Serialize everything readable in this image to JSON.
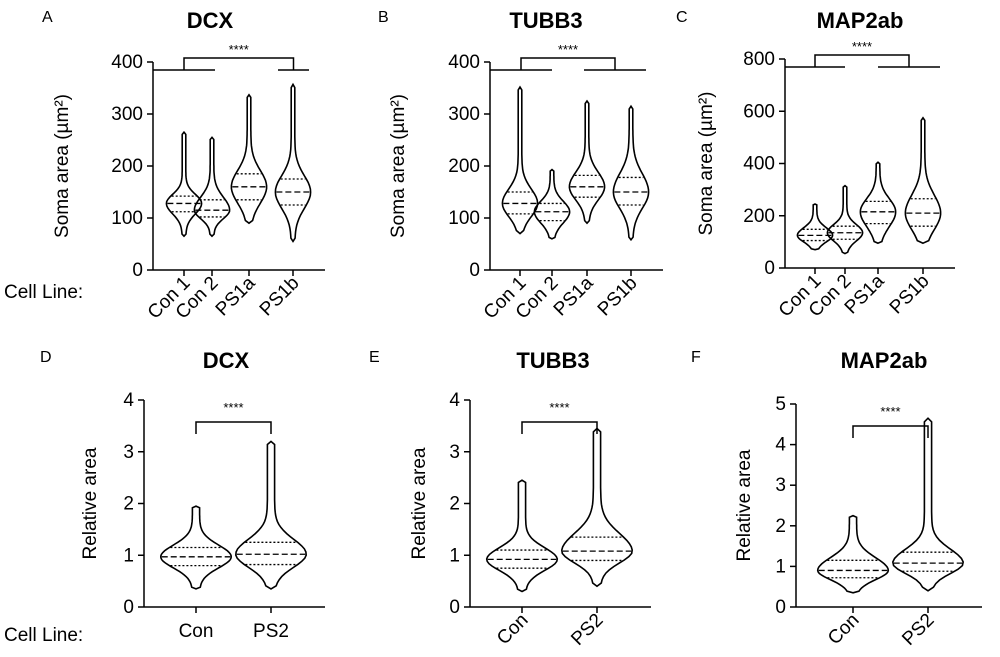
{
  "cell_line_label": "Cell Line:",
  "chart_data": [
    {
      "type": "violin",
      "letter": "A",
      "title": "DCX",
      "ylabel": "Soma area (µm²)",
      "ylim": [
        0,
        400
      ],
      "yticks": [
        0,
        100,
        200,
        300,
        400
      ],
      "categories": [
        "Con 1",
        "Con 2",
        "PS1a",
        "PS1b"
      ],
      "category_rotation": "rotated",
      "series": [
        {
          "name": "Con 1",
          "min": 65,
          "q1": 112,
          "median": 128,
          "q3": 142,
          "max": 265
        },
        {
          "name": "Con 2",
          "min": 65,
          "q1": 102,
          "median": 115,
          "q3": 135,
          "max": 255
        },
        {
          "name": "PS1a",
          "min": 90,
          "q1": 135,
          "median": 160,
          "q3": 185,
          "max": 337
        },
        {
          "name": "PS1b",
          "min": 55,
          "q1": 125,
          "median": 150,
          "q3": 175,
          "max": 357
        }
      ],
      "significance": "****",
      "comparison": "Con 1 + Con 2 vs PS1a + PS1b"
    },
    {
      "type": "violin",
      "letter": "B",
      "title": "TUBB3",
      "ylabel": "Soma area (µm²)",
      "ylim": [
        0,
        400
      ],
      "yticks": [
        0,
        100,
        200,
        300,
        400
      ],
      "categories": [
        "Con 1",
        "Con 2",
        "PS1a",
        "PS1b"
      ],
      "category_rotation": "rotated",
      "series": [
        {
          "name": "Con 1",
          "min": 70,
          "q1": 108,
          "median": 128,
          "q3": 150,
          "max": 352
        },
        {
          "name": "Con 2",
          "min": 60,
          "q1": 95,
          "median": 112,
          "q3": 128,
          "max": 193
        },
        {
          "name": "PS1a",
          "min": 90,
          "q1": 140,
          "median": 160,
          "q3": 182,
          "max": 325
        },
        {
          "name": "PS1b",
          "min": 58,
          "q1": 125,
          "median": 150,
          "q3": 178,
          "max": 315
        }
      ],
      "significance": "****",
      "comparison": "Con 1 + Con 2 vs PS1a + PS1b"
    },
    {
      "type": "violin",
      "letter": "C",
      "title": "MAP2ab",
      "ylabel": "Soma area (µm²)",
      "ylim": [
        0,
        800
      ],
      "yticks": [
        0,
        200,
        400,
        600,
        800
      ],
      "categories": [
        "Con 1",
        "Con 2",
        "PS1a",
        "PS1b"
      ],
      "category_rotation": "rotated",
      "series": [
        {
          "name": "Con 1",
          "min": 70,
          "q1": 105,
          "median": 125,
          "q3": 148,
          "max": 245
        },
        {
          "name": "Con 2",
          "min": 55,
          "q1": 110,
          "median": 135,
          "q3": 160,
          "max": 315
        },
        {
          "name": "PS1a",
          "min": 95,
          "q1": 170,
          "median": 215,
          "q3": 255,
          "max": 405
        },
        {
          "name": "PS1b",
          "min": 95,
          "q1": 160,
          "median": 210,
          "q3": 265,
          "max": 575
        }
      ],
      "significance": "****",
      "comparison": "Con 1 + Con 2 vs PS1a + PS1b"
    },
    {
      "type": "violin",
      "letter": "D",
      "title": "DCX",
      "ylabel": "Relative area",
      "ylim": [
        0,
        4
      ],
      "yticks": [
        0,
        1,
        2,
        3,
        4
      ],
      "categories": [
        "Con",
        "PS2"
      ],
      "category_rotation": "horizontal",
      "series": [
        {
          "name": "Con",
          "min": 0.35,
          "q1": 0.8,
          "median": 0.97,
          "q3": 1.15,
          "max": 1.95
        },
        {
          "name": "PS2",
          "min": 0.35,
          "q1": 0.82,
          "median": 1.02,
          "q3": 1.25,
          "max": 3.2
        }
      ],
      "significance": "****",
      "comparison": "Con vs PS2"
    },
    {
      "type": "violin",
      "letter": "E",
      "title": "TUBB3",
      "ylabel": "Relative area",
      "ylim": [
        0,
        4
      ],
      "yticks": [
        0,
        1,
        2,
        3,
        4
      ],
      "categories": [
        "Con",
        "PS2"
      ],
      "category_rotation": "rotated",
      "series": [
        {
          "name": "Con",
          "min": 0.3,
          "q1": 0.75,
          "median": 0.92,
          "q3": 1.1,
          "max": 2.45
        },
        {
          "name": "PS2",
          "min": 0.4,
          "q1": 0.9,
          "median": 1.08,
          "q3": 1.35,
          "max": 3.45
        }
      ],
      "significance": "****",
      "comparison": "Con vs PS2"
    },
    {
      "type": "violin",
      "letter": "F",
      "title": "MAP2ab",
      "ylabel": "Relative area",
      "ylim": [
        0,
        5
      ],
      "yticks": [
        0,
        1,
        2,
        3,
        4,
        5
      ],
      "categories": [
        "Con",
        "PS2"
      ],
      "category_rotation": "rotated",
      "series": [
        {
          "name": "Con",
          "min": 0.35,
          "q1": 0.72,
          "median": 0.9,
          "q3": 1.15,
          "max": 2.25
        },
        {
          "name": "PS2",
          "min": 0.4,
          "q1": 0.88,
          "median": 1.08,
          "q3": 1.35,
          "max": 4.65
        }
      ],
      "significance": "****",
      "comparison": "Con vs PS2"
    }
  ]
}
